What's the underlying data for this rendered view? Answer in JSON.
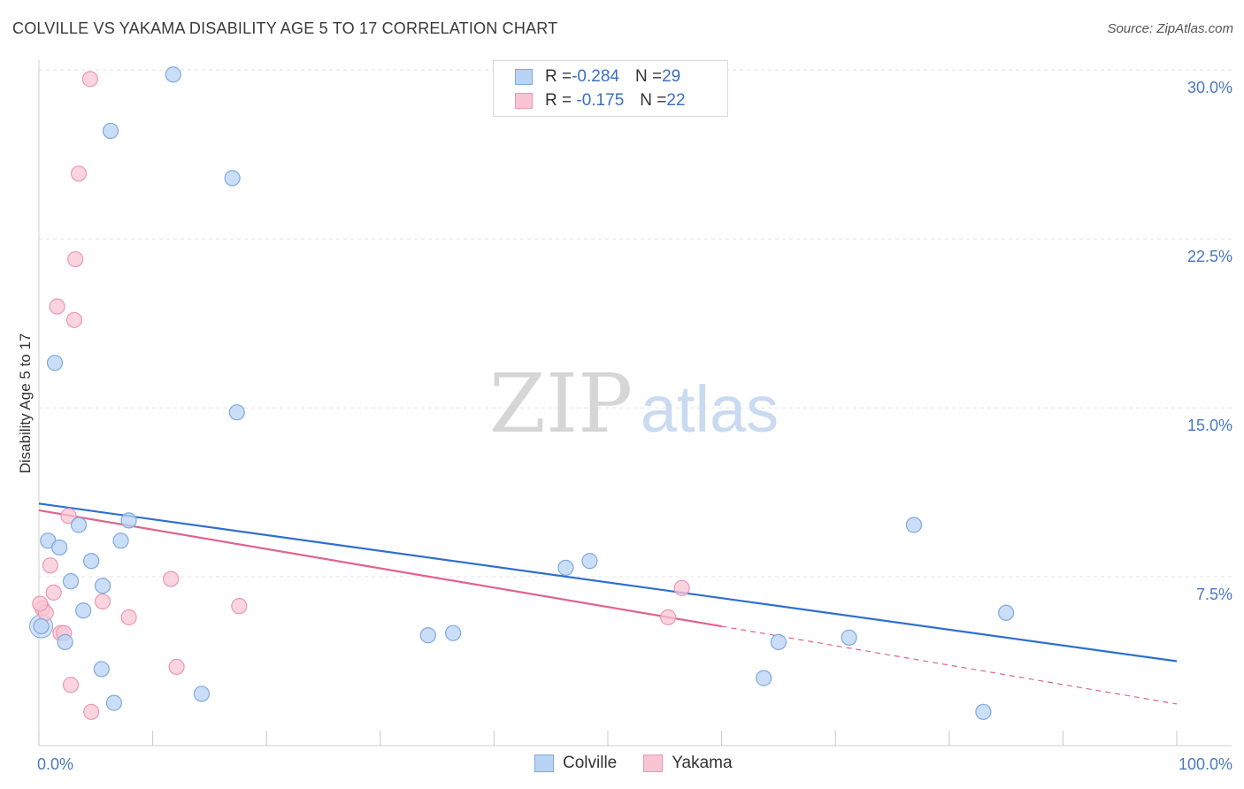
{
  "title": "COLVILLE VS YAKAMA DISABILITY AGE 5 TO 17 CORRELATION CHART",
  "source": "Source: ZipAtlas.com",
  "watermark": {
    "zip": "ZIP",
    "atlas": "atlas"
  },
  "legend": [
    {
      "r_label": "R = ",
      "r_value": "-0.284",
      "n_label": "N = ",
      "n_value": "29"
    },
    {
      "r_label": "R = ",
      "r_value": " -0.175",
      "n_label": "N = ",
      "n_value": "22"
    }
  ],
  "colors": {
    "colville_fill": "#b9d3f4",
    "colville_stroke": "#7fa8e0",
    "colville_line": "#2f6fcf",
    "yakama_fill": "#f8c5d3",
    "yakama_stroke": "#ec98b2",
    "yakama_line": "#e0638e",
    "grid": "#e3e3e3",
    "axis_text": "#4a78c2"
  },
  "chart_data": {
    "type": "scatter",
    "title": "COLVILLE VS YAKAMA DISABILITY AGE 5 TO 17 CORRELATION CHART",
    "xlabel": "",
    "ylabel": "Disability Age 5 to 17",
    "xlim": [
      0,
      100
    ],
    "ylim": [
      0,
      31.5
    ],
    "x_tick_labels": [
      "0.0%",
      "100.0%"
    ],
    "y_ticks": [
      7.5,
      15.0,
      22.5,
      30.0
    ],
    "y_tick_labels": [
      "7.5%",
      "15.0%",
      "22.5%",
      "30.0%"
    ],
    "legend_position": "bottom-center",
    "series": [
      {
        "name": "Colville",
        "points": [
          [
            0.2,
            5.3
          ],
          [
            0.8,
            9.1
          ],
          [
            1.4,
            17.0
          ],
          [
            1.8,
            8.8
          ],
          [
            2.3,
            4.6
          ],
          [
            2.8,
            7.3
          ],
          [
            3.5,
            9.8
          ],
          [
            3.9,
            6.0
          ],
          [
            4.6,
            8.2
          ],
          [
            5.5,
            3.4
          ],
          [
            5.6,
            7.1
          ],
          [
            6.3,
            27.3
          ],
          [
            6.6,
            1.9
          ],
          [
            7.2,
            9.1
          ],
          [
            7.9,
            10.0
          ],
          [
            11.8,
            29.8
          ],
          [
            14.3,
            2.3
          ],
          [
            17.0,
            25.2
          ],
          [
            17.4,
            14.8
          ],
          [
            34.2,
            4.9
          ],
          [
            36.4,
            5.0
          ],
          [
            46.3,
            7.9
          ],
          [
            48.4,
            8.2
          ],
          [
            63.7,
            3.0
          ],
          [
            65.0,
            4.6
          ],
          [
            71.2,
            4.8
          ],
          [
            76.9,
            9.8
          ],
          [
            83.0,
            1.5
          ],
          [
            85.0,
            5.9
          ]
        ],
        "trend": {
          "x": [
            0,
            100
          ],
          "y": [
            10.75,
            3.75
          ]
        }
      },
      {
        "name": "Yakama",
        "points": [
          [
            0.3,
            6.1
          ],
          [
            0.6,
            5.9
          ],
          [
            1.0,
            8.0
          ],
          [
            1.3,
            6.8
          ],
          [
            1.6,
            19.5
          ],
          [
            1.9,
            5.0
          ],
          [
            2.2,
            5.0
          ],
          [
            2.6,
            10.2
          ],
          [
            2.8,
            2.7
          ],
          [
            3.1,
            18.9
          ],
          [
            3.2,
            21.6
          ],
          [
            3.5,
            25.4
          ],
          [
            4.5,
            29.6
          ],
          [
            4.6,
            1.5
          ],
          [
            5.6,
            6.4
          ],
          [
            7.9,
            5.7
          ],
          [
            11.6,
            7.4
          ],
          [
            12.1,
            3.5
          ],
          [
            17.6,
            6.2
          ],
          [
            55.3,
            5.7
          ],
          [
            56.5,
            7.0
          ],
          [
            0.1,
            6.3
          ]
        ],
        "trend": {
          "x": [
            0,
            60
          ],
          "y": [
            10.45,
            5.3
          ]
        },
        "trend_dashed": {
          "x": [
            60,
            100
          ],
          "y": [
            5.3,
            1.85
          ]
        }
      }
    ]
  },
  "bottom_legend": [
    "Colville",
    "Yakama"
  ]
}
